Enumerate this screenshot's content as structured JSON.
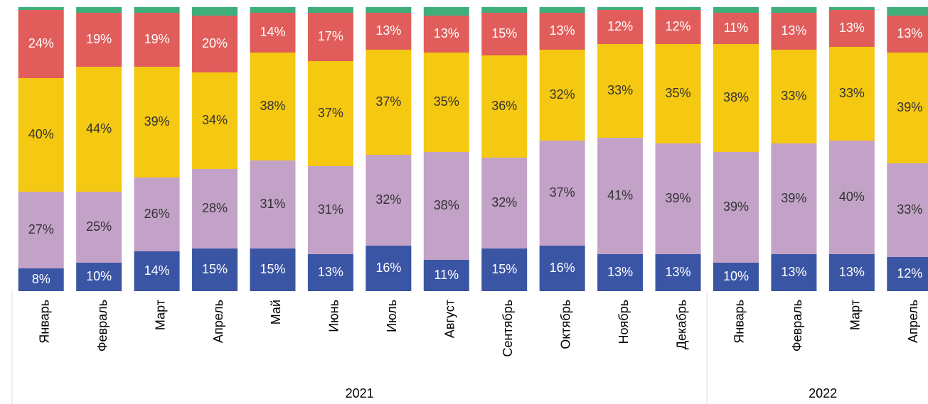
{
  "chart_data": {
    "type": "stacked_bar",
    "categories": [
      "Январь",
      "Февраль",
      "Март",
      "Апрель",
      "Май",
      "Июнь",
      "Июль",
      "Август",
      "Сентябрь",
      "Октябрь",
      "Ноябрь",
      "Декабрь",
      "Январь",
      "Февраль",
      "Март",
      "Апрель"
    ],
    "groups": [
      {
        "label": "2021",
        "span": 12
      },
      {
        "label": "2022",
        "span": 4
      }
    ],
    "ylim": [
      0,
      100
    ],
    "series": [
      {
        "color": "#3a55a4",
        "label_color": "#ffffff",
        "values": [
          8,
          10,
          14,
          15,
          15,
          13,
          16,
          11,
          15,
          16,
          13,
          13,
          10,
          13,
          13,
          12
        ],
        "value_labels": [
          "8%",
          "10%",
          "14%",
          "15%",
          "15%",
          "13%",
          "16%",
          "11%",
          "15%",
          "16%",
          "13%",
          "13%",
          "10%",
          "13%",
          "13%",
          "12%"
        ]
      },
      {
        "color": "#c3a2c8",
        "label_color": "#333333",
        "values": [
          27,
          25,
          26,
          28,
          31,
          31,
          32,
          38,
          32,
          37,
          41,
          39,
          39,
          39,
          40,
          33
        ],
        "value_labels": [
          "27%",
          "25%",
          "26%",
          "28%",
          "31%",
          "31%",
          "32%",
          "38%",
          "32%",
          "37%",
          "41%",
          "39%",
          "39%",
          "39%",
          "40%",
          "33%"
        ]
      },
      {
        "color": "#f5c811",
        "label_color": "#333333",
        "values": [
          40,
          44,
          39,
          34,
          38,
          37,
          37,
          35,
          36,
          32,
          33,
          35,
          38,
          33,
          33,
          39
        ],
        "value_labels": [
          "40%",
          "44%",
          "39%",
          "34%",
          "38%",
          "37%",
          "37%",
          "35%",
          "36%",
          "32%",
          "33%",
          "35%",
          "38%",
          "33%",
          "33%",
          "39%"
        ]
      },
      {
        "color": "#e05d5b",
        "label_color": "#ffffff",
        "values": [
          24,
          19,
          19,
          20,
          14,
          17,
          13,
          13,
          15,
          13,
          12,
          12,
          11,
          13,
          13,
          13
        ],
        "value_labels": [
          "24%",
          "19%",
          "19%",
          "20%",
          "14%",
          "17%",
          "13%",
          "13%",
          "15%",
          "13%",
          "12%",
          "12%",
          "11%",
          "13%",
          "13%",
          "13%"
        ]
      },
      {
        "color": "#3fae7b",
        "values": [
          1,
          2,
          2,
          3,
          2,
          2,
          2,
          3,
          2,
          2,
          1,
          1,
          2,
          2,
          1,
          3
        ]
      }
    ]
  }
}
